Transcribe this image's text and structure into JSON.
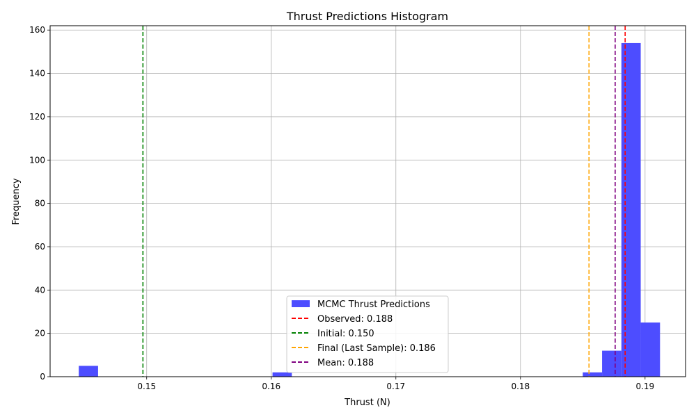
{
  "chart_data": {
    "type": "bar",
    "title": "Thrust Predictions Histogram",
    "xlabel": "Thrust (N)",
    "ylabel": "Frequency",
    "xlim": [
      0.14225,
      0.19325
    ],
    "ylim": [
      0,
      162
    ],
    "xticks": [
      0.15,
      0.16,
      0.17,
      0.18,
      0.19
    ],
    "xtick_labels": [
      "0.15",
      "0.16",
      "0.17",
      "0.18",
      "0.19"
    ],
    "yticks": [
      0,
      20,
      40,
      60,
      80,
      100,
      120,
      140,
      160
    ],
    "ytick_labels": [
      "0",
      "20",
      "40",
      "60",
      "80",
      "100",
      "120",
      "140",
      "160"
    ],
    "grid": true,
    "legend_position": "lower center",
    "histogram": {
      "name": "MCMC Thrust Predictions",
      "color": "#4d4dff",
      "bins": [
        {
          "x0": 0.14455,
          "x1": 0.1461,
          "count": 5
        },
        {
          "x0": 0.1601,
          "x1": 0.16165,
          "count": 2
        },
        {
          "x0": 0.185,
          "x1": 0.18655,
          "count": 2
        },
        {
          "x0": 0.18655,
          "x1": 0.1881,
          "count": 12
        },
        {
          "x0": 0.1881,
          "x1": 0.18965,
          "count": 154
        },
        {
          "x0": 0.18965,
          "x1": 0.1912,
          "count": 25
        }
      ]
    },
    "vlines": [
      {
        "name": "Observed: 0.188",
        "x": 0.1884,
        "color": "#ff0000"
      },
      {
        "name": "Initial: 0.150",
        "x": 0.1497,
        "color": "#008000"
      },
      {
        "name": "Final (Last Sample): 0.186",
        "x": 0.1855,
        "color": "#ffa500"
      },
      {
        "name": "Mean: 0.188",
        "x": 0.1876,
        "color": "#800080"
      }
    ]
  }
}
